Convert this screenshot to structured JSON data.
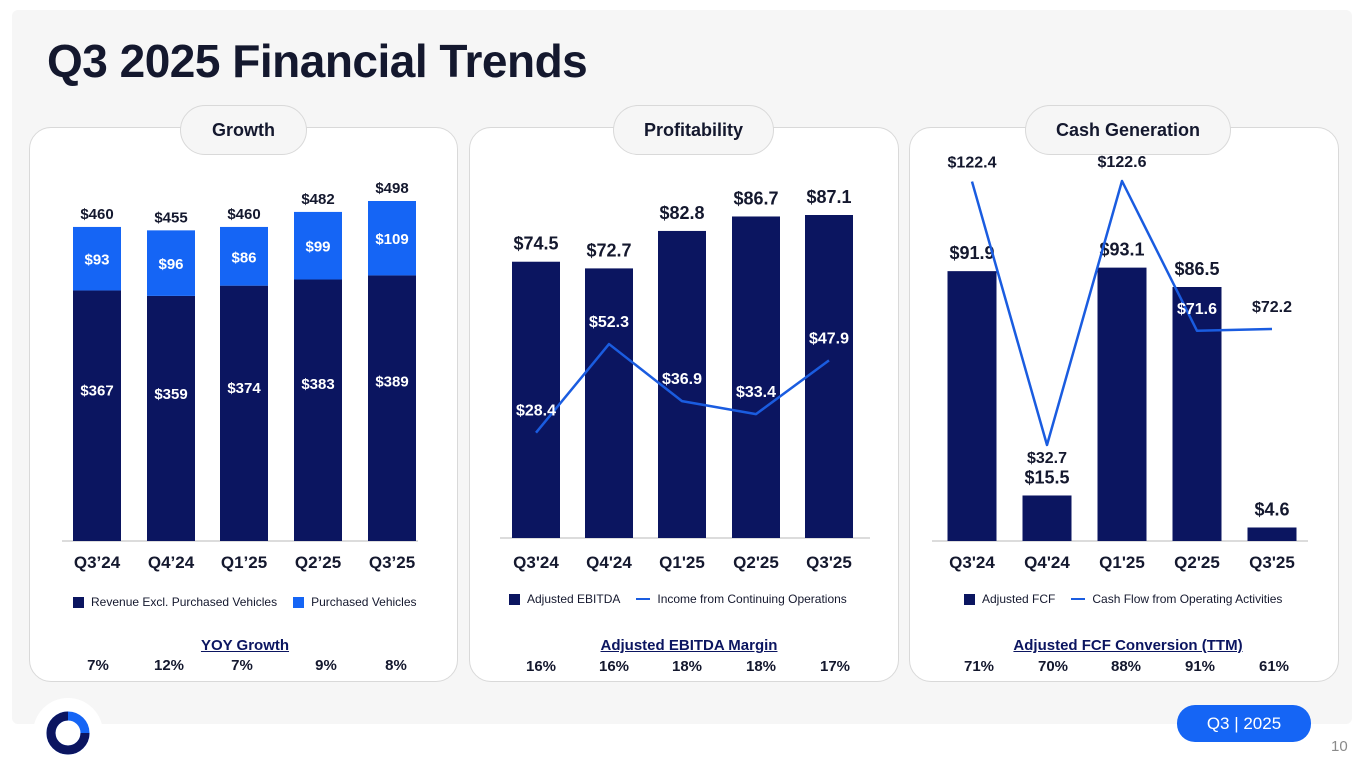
{
  "slide": {
    "title": "Q3 2025 Financial Trends",
    "badge": "Q3 | 2025",
    "page_number": "10"
  },
  "colors": {
    "navy": "#0b1560",
    "blue": "#1565f5",
    "line": "#1a5ce0",
    "text": "#14182e"
  },
  "panels": [
    {
      "header": "Growth",
      "metric_title": "YOY Growth",
      "metric_values": [
        "7%",
        "12%",
        "7%",
        "9%",
        "8%"
      ],
      "legend": [
        "Revenue Excl. Purchased Vehicles",
        "Purchased Vehicles"
      ]
    },
    {
      "header": "Profitability",
      "metric_title": "Adjusted EBITDA Margin",
      "metric_values": [
        "16%",
        "16%",
        "18%",
        "18%",
        "17%"
      ],
      "legend": [
        "Adjusted EBITDA",
        "Income from Continuing Operations"
      ]
    },
    {
      "header": "Cash Generation",
      "metric_title": "Adjusted FCF Conversion (TTM)",
      "metric_values": [
        "71%",
        "70%",
        "88%",
        "91%",
        "61%"
      ],
      "legend": [
        "Adjusted FCF",
        "Cash Flow from Operating Activities"
      ]
    }
  ],
  "chart_data": [
    {
      "type": "bar",
      "stacked": true,
      "title": "Growth",
      "categories": [
        "Q3’24",
        "Q4’24",
        "Q1’25",
        "Q2’25",
        "Q3’25"
      ],
      "series": [
        {
          "name": "Revenue Excl. Purchased Vehicles",
          "values": [
            367,
            359,
            374,
            383,
            389
          ],
          "labels": [
            "$367",
            "$359",
            "$374",
            "$383",
            "$389"
          ]
        },
        {
          "name": "Purchased Vehicles",
          "values": [
            93,
            96,
            86,
            99,
            109
          ],
          "labels": [
            "$93",
            "$96",
            "$86",
            "$99",
            "$109"
          ]
        }
      ],
      "totals": [
        460,
        455,
        460,
        482,
        498
      ],
      "total_labels": [
        "$460",
        "$455",
        "$460",
        "$482",
        "$498"
      ],
      "ylim": [
        0,
        498
      ]
    },
    {
      "type": "bar",
      "title": "Profitability",
      "categories": [
        "Q3'24",
        "Q4'24",
        "Q1'25",
        "Q2'25",
        "Q3'25"
      ],
      "series": [
        {
          "name": "Adjusted EBITDA",
          "type": "bar",
          "values": [
            74.5,
            72.7,
            82.8,
            86.7,
            87.1
          ],
          "labels": [
            "$74.5",
            "$72.7",
            "$82.8",
            "$86.7",
            "$87.1"
          ]
        },
        {
          "name": "Income from Continuing Operations",
          "type": "line",
          "values": [
            28.4,
            52.3,
            36.9,
            33.4,
            47.9
          ],
          "labels": [
            "$28.4",
            "$52.3",
            "$36.9",
            "$33.4",
            "$47.9"
          ]
        }
      ],
      "ylim": [
        0,
        87.1
      ]
    },
    {
      "type": "bar",
      "title": "Cash Generation",
      "categories": [
        "Q3'24",
        "Q4'24",
        "Q1'25",
        "Q2'25",
        "Q3'25"
      ],
      "series": [
        {
          "name": "Adjusted FCF",
          "type": "bar",
          "values": [
            91.9,
            15.5,
            93.1,
            86.5,
            4.6
          ],
          "labels": [
            "$91.9",
            "$15.5",
            "$93.1",
            "$86.5",
            "$4.6"
          ]
        },
        {
          "name": "Cash Flow from Operating Activities",
          "type": "line",
          "values": [
            122.4,
            32.7,
            122.6,
            71.6,
            72.2
          ],
          "labels": [
            "$122.4",
            "$32.7",
            "$122.6",
            "$71.6",
            "$72.2"
          ]
        }
      ],
      "ylim": [
        0,
        122.6
      ]
    }
  ]
}
